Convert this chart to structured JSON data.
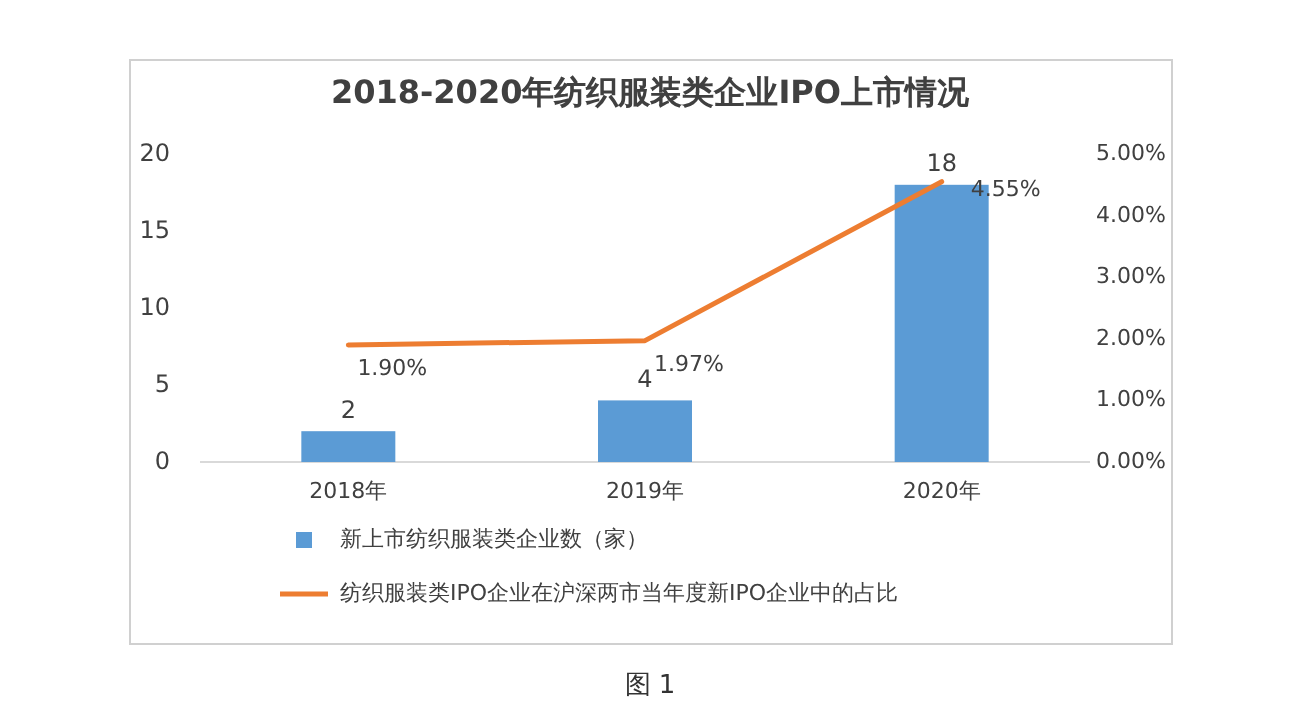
{
  "chart_data": {
    "type": "bar",
    "title": "2018-2020年纺织服装类企业IPO上市情况",
    "categories": [
      "2018年",
      "2019年",
      "2020年"
    ],
    "ylim": [
      0,
      20
    ],
    "yticks": [
      0,
      5,
      10,
      15,
      20
    ],
    "y2lim": [
      0,
      5
    ],
    "y2ticks": [
      {
        "value": 0,
        "label": "0.00%"
      },
      {
        "value": 1,
        "label": "1.00%"
      },
      {
        "value": 2,
        "label": "2.00%"
      },
      {
        "value": 3,
        "label": "3.00%"
      },
      {
        "value": 4,
        "label": "4.00%"
      },
      {
        "value": 5,
        "label": "5.00%"
      }
    ],
    "legend": "bottom",
    "grid": false,
    "annotations": [
      "图 1"
    ],
    "series": [
      {
        "name": "新上市纺织服装类企业数（家）",
        "color": "#5b9bd5",
        "values": [
          2,
          4,
          18
        ],
        "value_labels": [
          "2",
          "4",
          "18"
        ]
      },
      {
        "name": "纺织服装类IPO企业在沪深两市当年度新IPO企业中的占比",
        "type": "line",
        "axis": "y2",
        "color": "#ed7d31",
        "values": [
          1.9,
          1.97,
          4.55
        ],
        "value_labels": [
          "1.90%",
          "1.97%",
          "4.55%"
        ]
      }
    ]
  }
}
